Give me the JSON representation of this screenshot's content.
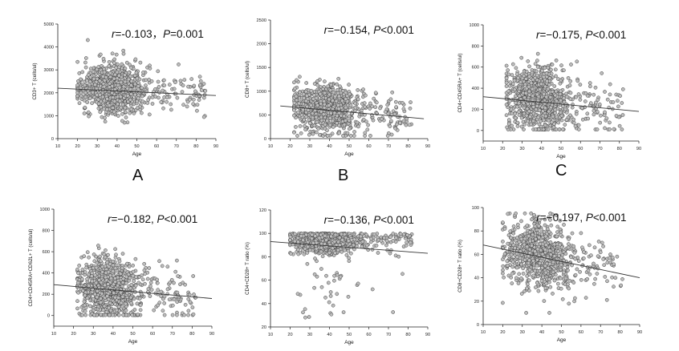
{
  "chart_data": [
    {
      "type": "scatter",
      "panel_letter": "A",
      "ylabel": "CD3+ T (cells/ul)",
      "xlabel": "Age",
      "annotation": {
        "r_symbol": "r",
        "r_value": "=-0.103，",
        "p_symbol": "P",
        "p_value": "=0.001"
      },
      "xlim": [
        10,
        90
      ],
      "ylim": [
        0,
        5000
      ],
      "xticks": [
        10,
        20,
        30,
        40,
        50,
        60,
        70,
        80,
        90
      ],
      "yticks": [
        0,
        1000,
        2000,
        3000,
        4000,
        5000
      ],
      "fit_line": {
        "x": [
          10,
          90
        ],
        "y": [
          2200,
          1880
        ]
      },
      "points": {
        "n": 900,
        "x_range": [
          20,
          85
        ],
        "x_mode": 38,
        "y_center": 2150,
        "y_sd": 560,
        "y_min": 700,
        "y_max": 4600,
        "seed": 11
      }
    },
    {
      "type": "scatter",
      "panel_letter": "B",
      "ylabel": "CD8+ T (cells/ul)",
      "xlabel": "Age",
      "annotation": {
        "r_symbol": "r",
        "r_value": "=−0.154, ",
        "p_symbol": "P",
        "p_value": "<0.001"
      },
      "xlim": [
        10,
        90
      ],
      "ylim": [
        0,
        2500
      ],
      "xticks": [
        10,
        20,
        30,
        40,
        50,
        60,
        70,
        80,
        90
      ],
      "yticks": [
        0,
        500,
        1000,
        1500,
        2000,
        2500
      ],
      "fit_line": {
        "x": [
          15,
          88
        ],
        "y": [
          690,
          420
        ]
      },
      "points": {
        "n": 900,
        "x_range": [
          22,
          82
        ],
        "x_mode": 38,
        "y_center": 640,
        "y_sd": 240,
        "y_min": 60,
        "y_max": 2150,
        "seed": 22
      }
    },
    {
      "type": "scatter",
      "panel_letter": "C",
      "ylabel": "CD4+CD45RA+ T (cells/ul)",
      "xlabel": "Age",
      "annotation": {
        "r_symbol": "r",
        "r_value": "=−0.175, ",
        "p_symbol": "P",
        "p_value": "<0.001"
      },
      "xlim": [
        10,
        90
      ],
      "ylim": [
        -100,
        1000
      ],
      "xticks": [
        10,
        20,
        30,
        40,
        50,
        60,
        70,
        80,
        90
      ],
      "yticks": [
        0,
        200,
        400,
        600,
        800,
        1000
      ],
      "fit_line": {
        "x": [
          10,
          90
        ],
        "y": [
          320,
          180
        ]
      },
      "points": {
        "n": 900,
        "x_range": [
          22,
          82
        ],
        "x_mode": 38,
        "y_center": 290,
        "y_sd": 150,
        "y_min": 10,
        "y_max": 920,
        "seed": 33
      }
    },
    {
      "type": "scatter",
      "panel_letter": "",
      "ylabel": "CD4+CD45RA+CD62L+ T (cells/ul)",
      "xlabel": "Age",
      "annotation": {
        "r_symbol": "r",
        "r_value": "=−0.182, ",
        "p_symbol": "P",
        "p_value": "<0.001"
      },
      "xlim": [
        10,
        90
      ],
      "ylim": [
        -100,
        1000
      ],
      "xticks": [
        10,
        20,
        30,
        40,
        50,
        60,
        70,
        80,
        90
      ],
      "yticks": [
        0,
        200,
        400,
        600,
        800,
        1000
      ],
      "fit_line": {
        "x": [
          10,
          90
        ],
        "y": [
          290,
          160
        ]
      },
      "points": {
        "n": 900,
        "x_range": [
          22,
          82
        ],
        "x_mode": 38,
        "y_center": 250,
        "y_sd": 140,
        "y_min": 5,
        "y_max": 880,
        "seed": 44
      }
    },
    {
      "type": "scatter",
      "panel_letter": "",
      "ylabel": "CD4+CD28+ T ratio (%)",
      "xlabel": "Age",
      "annotation": {
        "r_symbol": "r",
        "r_value": "=−0.136, ",
        "p_symbol": "P",
        "p_value": "<0.001"
      },
      "xlim": [
        10,
        90
      ],
      "ylim": [
        20,
        120
      ],
      "xticks": [
        10,
        20,
        30,
        40,
        50,
        60,
        70,
        80,
        90
      ],
      "yticks": [
        20,
        40,
        60,
        80,
        100,
        120
      ],
      "fit_line": {
        "x": [
          10,
          90
        ],
        "y": [
          93,
          83
        ]
      },
      "points": {
        "n": 900,
        "x_range": [
          20,
          82
        ],
        "x_mode": 38,
        "y_center": 91,
        "y_sd": 8,
        "y_min": 28,
        "y_max": 100,
        "seed": 55
      }
    },
    {
      "type": "scatter",
      "panel_letter": "",
      "ylabel": "CD8+CD28+ T ratio (%)",
      "xlabel": "Age",
      "annotation": {
        "r_symbol": "r",
        "r_value": "=−0.197, ",
        "p_symbol": "P",
        "p_value": "<0.001"
      },
      "xlim": [
        10,
        90
      ],
      "ylim": [
        0,
        100
      ],
      "xticks": [
        10,
        20,
        30,
        40,
        50,
        60,
        70,
        80,
        90
      ],
      "yticks": [
        0,
        20,
        40,
        60,
        80,
        100
      ],
      "fit_line": {
        "x": [
          10,
          90
        ],
        "y": [
          68,
          40
        ]
      },
      "points": {
        "n": 900,
        "x_range": [
          20,
          82
        ],
        "x_mode": 38,
        "y_center": 60,
        "y_sd": 14,
        "y_min": 10,
        "y_max": 95,
        "seed": 66
      }
    }
  ]
}
